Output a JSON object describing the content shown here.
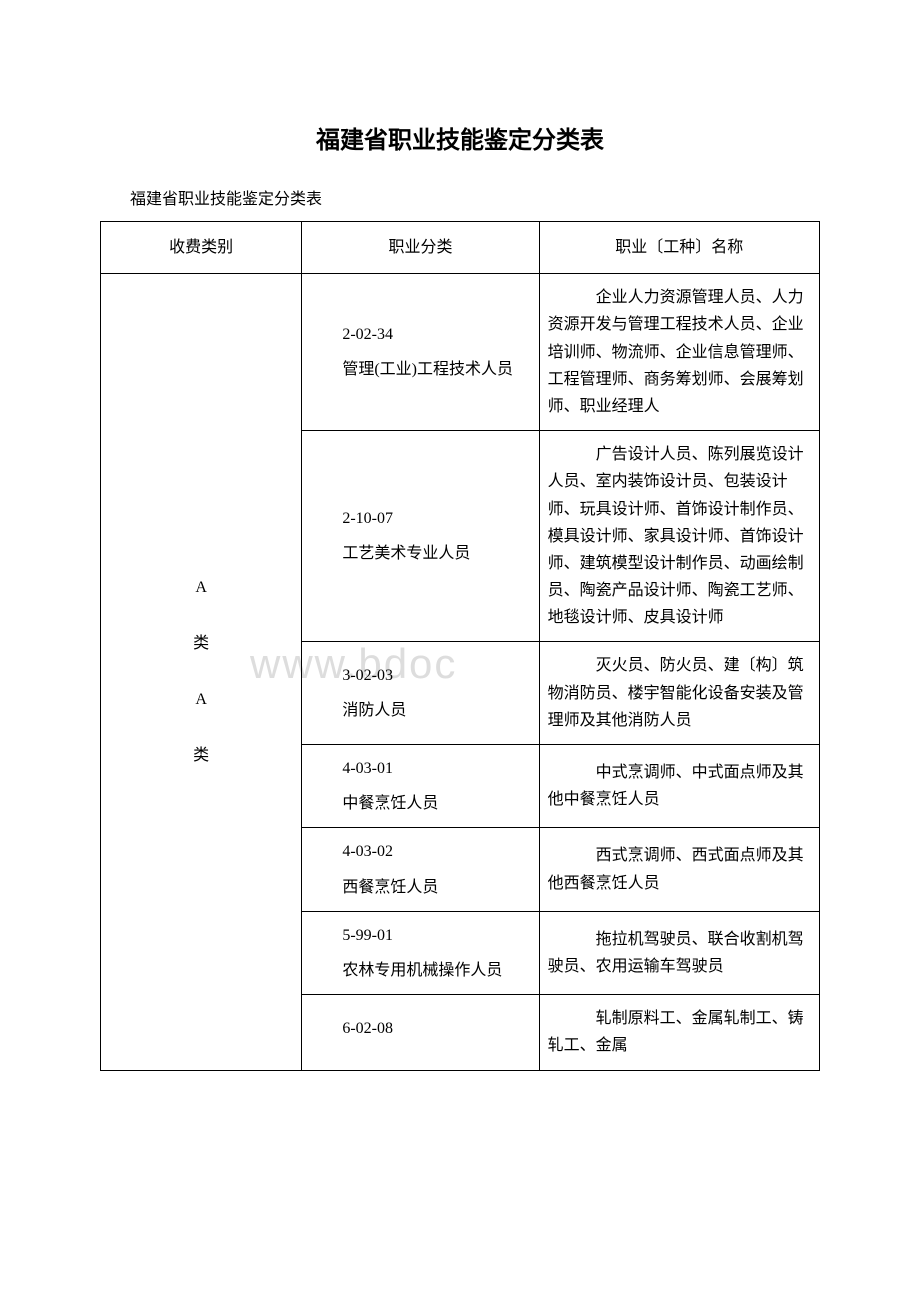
{
  "title": "福建省职业技能鉴定分类表",
  "subtitle": "福建省职业技能鉴定分类表",
  "watermark": "www.bdoc",
  "headers": {
    "col1": "收费类别",
    "col2": "职业分类",
    "col3": "职业〔工种〕名称"
  },
  "category_col": "A\n\n类\n\nA\n\n类",
  "rows": [
    {
      "code": "2-02-34",
      "name": "管理(工业)工程技术人员",
      "occupations": "　　　企业人力资源管理人员、人力资源开发与管理工程技术人员、企业培训师、物流师、企业信息管理师、工程管理师、商务筹划师、会展筹划师、职业经理人"
    },
    {
      "code": "2-10-07",
      "name": "工艺美术专业人员",
      "occupations": "　　　广告设计人员、陈列展览设计人员、室内装饰设计员、包装设计师、玩具设计师、首饰设计制作员、模具设计师、家具设计师、首饰设计师、建筑模型设计制作员、动画绘制员、陶瓷产品设计师、陶瓷工艺师、地毯设计师、皮具设计师"
    },
    {
      "code": "3-02-03",
      "name": "消防人员",
      "occupations": "　　　灭火员、防火员、建〔构〕筑物消防员、楼宇智能化设备安装及管理师及其他消防人员"
    },
    {
      "code": "4-03-01",
      "name": "中餐烹饪人员",
      "occupations": "　　　中式烹调师、中式面点师及其他中餐烹饪人员"
    },
    {
      "code": "4-03-02",
      "name": "西餐烹饪人员",
      "occupations": "　　　西式烹调师、西式面点师及其他西餐烹饪人员"
    },
    {
      "code": "5-99-01",
      "name": "农林专用机械操作人员",
      "occupations": "　　　拖拉机驾驶员、联合收割机驾驶员、农用运输车驾驶员"
    },
    {
      "code": "6-02-08",
      "name": "",
      "occupations": "　　　轧制原料工、金属轧制工、铸轧工、金属"
    }
  ],
  "colors": {
    "text": "#000000",
    "background": "#ffffff",
    "border": "#000000",
    "watermark": "#dddddd"
  },
  "typography": {
    "title_fontsize": 24,
    "body_fontsize": 16,
    "font_family": "SimSun"
  }
}
